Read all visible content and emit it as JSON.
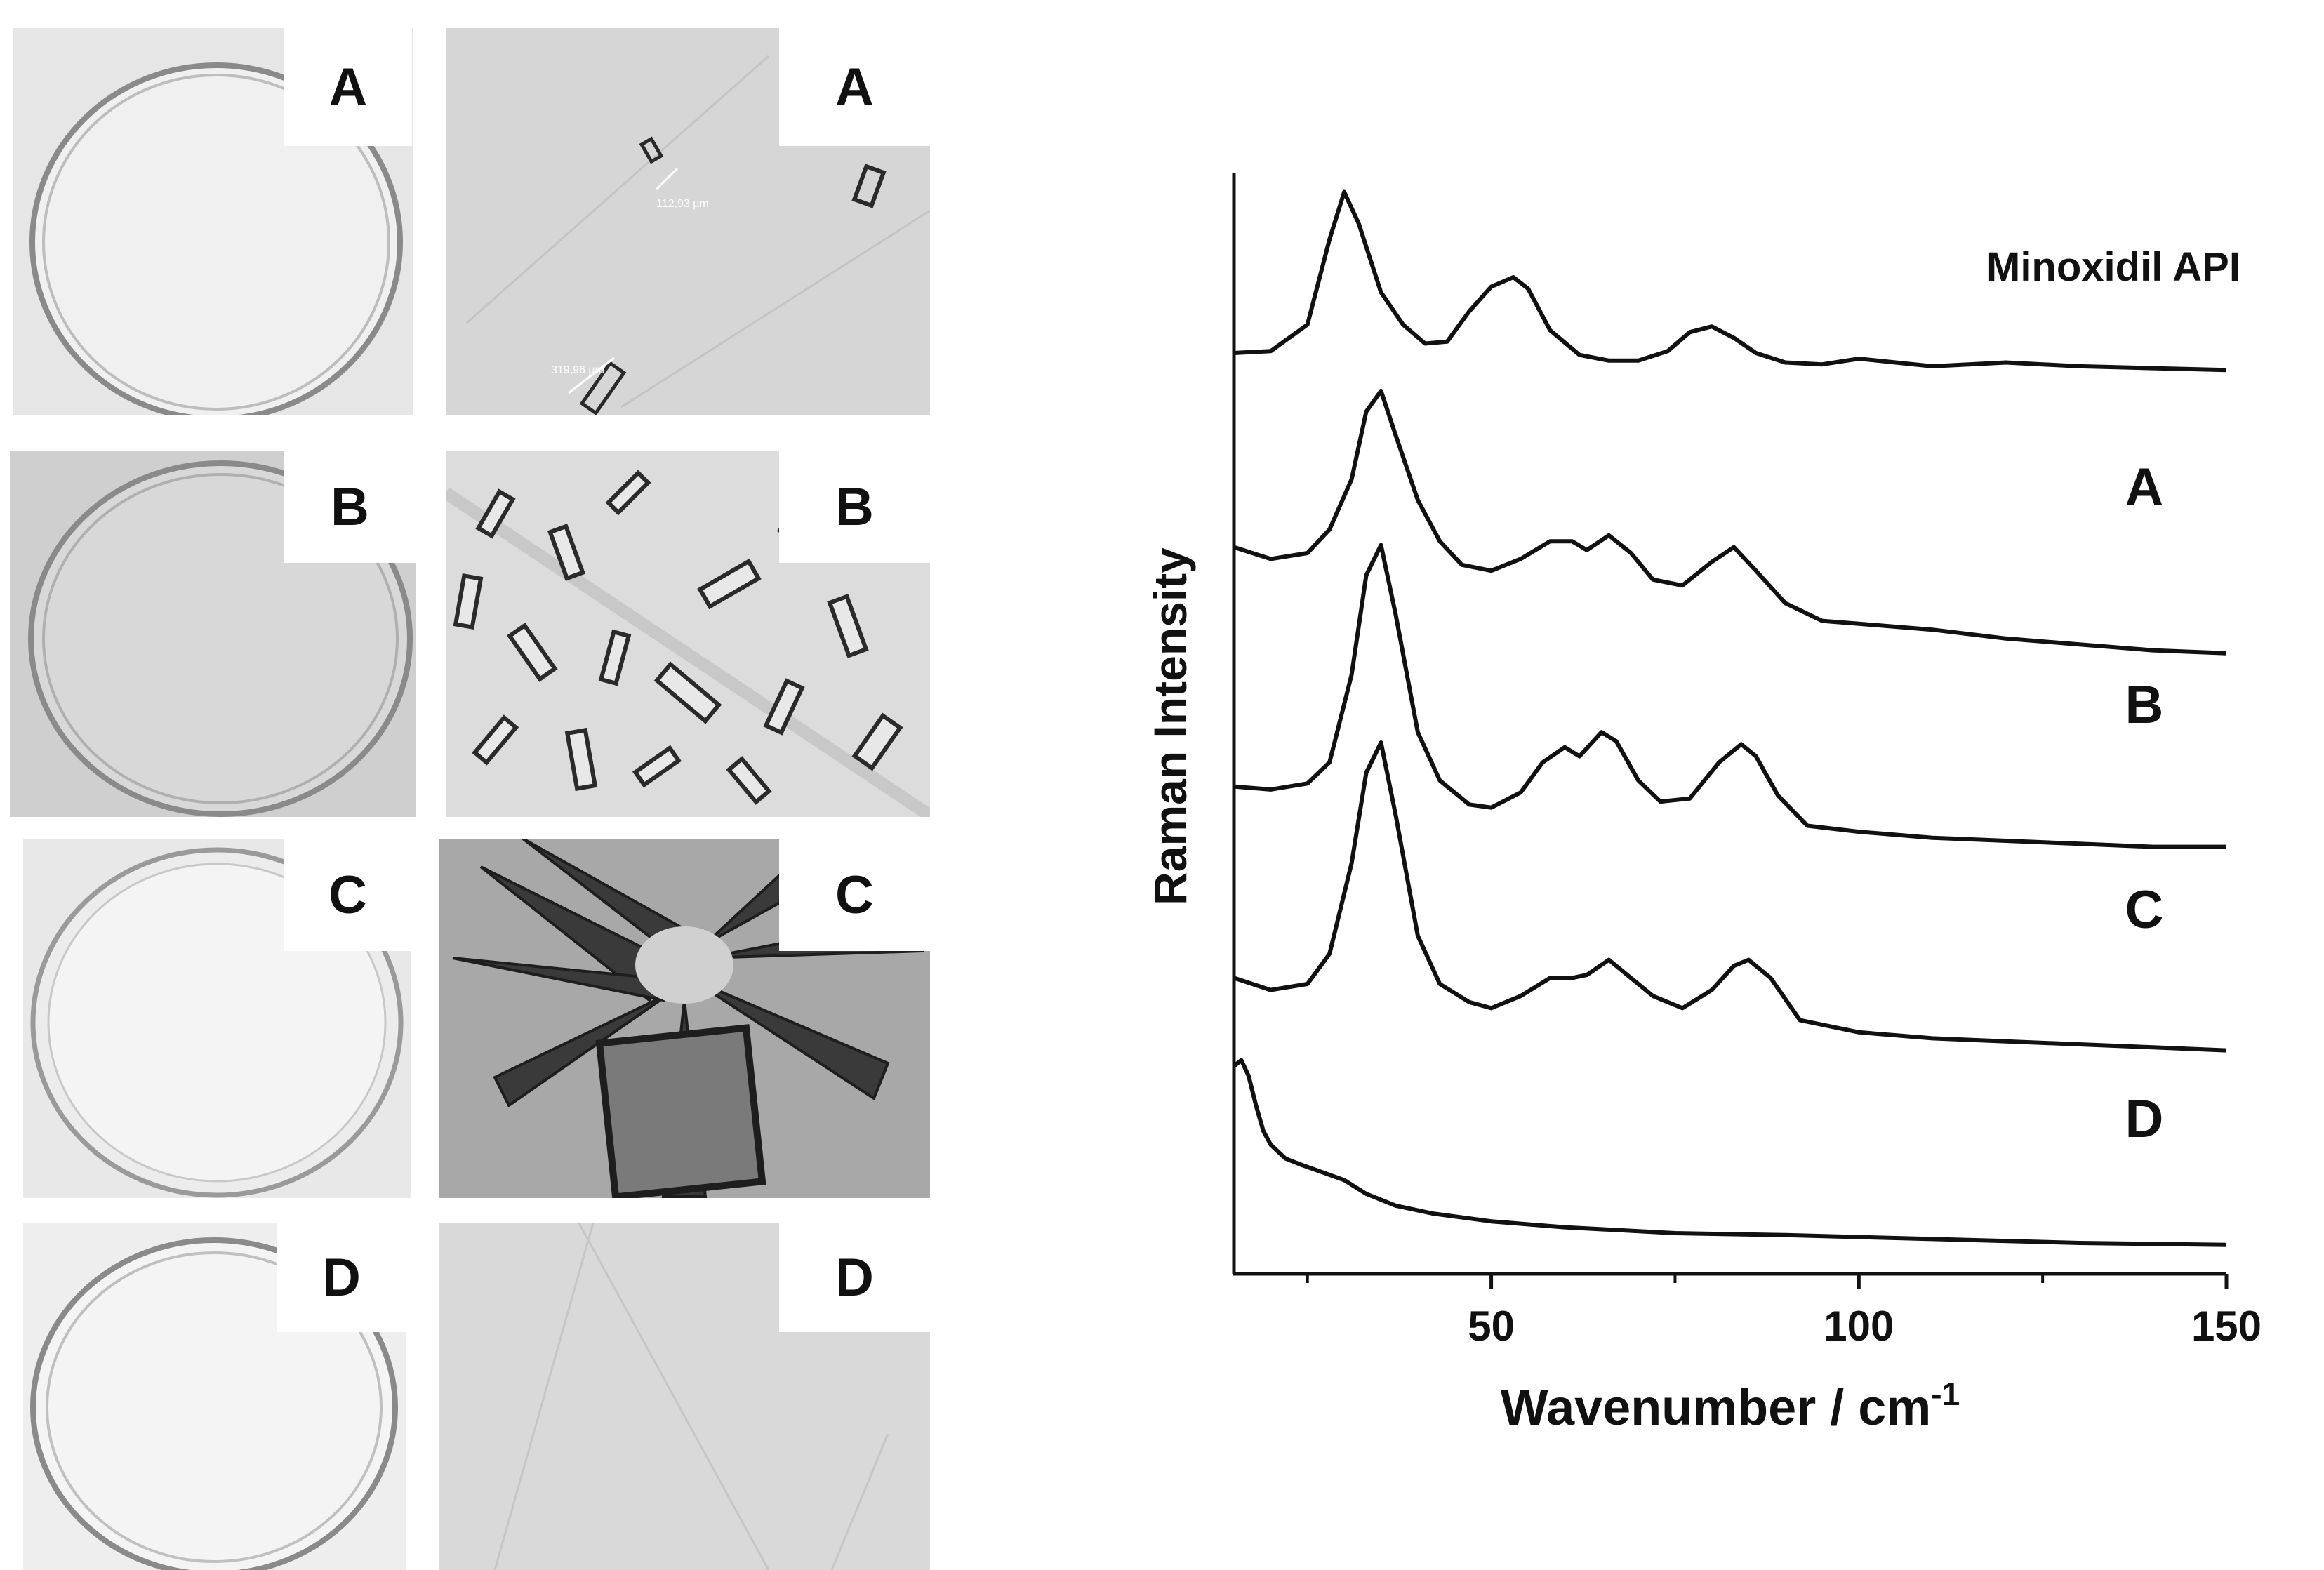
{
  "panels": [
    {
      "row_label": "A",
      "dish_label": "A",
      "micro_label": "A",
      "scale_bar_1": "112,93 µm",
      "scale_bar_2": "319,96 µm"
    },
    {
      "row_label": "B",
      "dish_label": "B",
      "micro_label": "B"
    },
    {
      "row_label": "C",
      "dish_label": "C",
      "micro_label": "C"
    },
    {
      "row_label": "D",
      "dish_label": "D",
      "micro_label": "D"
    }
  ],
  "colors": {
    "trace": "#111111",
    "axis": "#111111",
    "photo_background": "#d9d9d9",
    "dish_rim": "#8a8a8a",
    "crystal": "#2a2a2a"
  },
  "icons": [
    "petri-dish-photo",
    "micrograph-photo"
  ],
  "chart_data": {
    "type": "line",
    "title": "",
    "xlabel": "Wavenumber / cm-1",
    "xlabel_main": "Wavenumber / cm",
    "xlabel_sup": "-1",
    "ylabel": "Raman Intensity",
    "xlim": [
      15,
      150
    ],
    "x_ticks": [
      50,
      100,
      150
    ],
    "x_tick_labels": [
      "50",
      "100",
      "150"
    ],
    "minor_ticks": [
      25,
      75,
      125
    ],
    "y_ticks": [],
    "grid": false,
    "legend": "none",
    "series": [
      {
        "name": "Minoxidil API",
        "x": [
          15,
          20,
          25,
          28,
          30,
          32,
          35,
          38,
          41,
          44,
          47,
          50,
          53,
          55,
          58,
          62,
          66,
          70,
          74,
          77,
          80,
          83,
          86,
          90,
          95,
          100,
          105,
          110,
          115,
          120,
          125,
          130,
          140,
          150
        ],
        "y": [
          0.1,
          0.11,
          0.25,
          0.7,
          0.95,
          0.78,
          0.42,
          0.25,
          0.15,
          0.16,
          0.32,
          0.45,
          0.5,
          0.44,
          0.22,
          0.09,
          0.06,
          0.06,
          0.11,
          0.21,
          0.24,
          0.18,
          0.1,
          0.05,
          0.04,
          0.07,
          0.05,
          0.03,
          0.04,
          0.05,
          0.04,
          0.03,
          0.02,
          0.01
        ]
      },
      {
        "name": "A",
        "x": [
          15,
          20,
          25,
          28,
          31,
          33,
          35,
          37,
          40,
          43,
          46,
          50,
          54,
          58,
          61,
          63,
          66,
          69,
          72,
          76,
          80,
          83,
          86,
          90,
          95,
          100,
          110,
          120,
          130,
          140,
          150
        ],
        "y": [
          0.62,
          0.58,
          0.6,
          0.68,
          0.85,
          1.08,
          1.15,
          1.0,
          0.78,
          0.64,
          0.56,
          0.54,
          0.58,
          0.64,
          0.64,
          0.61,
          0.66,
          0.6,
          0.51,
          0.49,
          0.57,
          0.62,
          0.54,
          0.43,
          0.37,
          0.36,
          0.34,
          0.31,
          0.29,
          0.27,
          0.26
        ]
      },
      {
        "name": "B",
        "x": [
          15,
          20,
          25,
          28,
          31,
          33,
          35,
          37,
          40,
          43,
          47,
          50,
          54,
          57,
          60,
          62,
          65,
          67,
          70,
          73,
          77,
          81,
          84,
          86,
          89,
          93,
          100,
          110,
          120,
          130,
          140,
          150
        ],
        "y": [
          0.58,
          0.57,
          0.59,
          0.66,
          0.95,
          1.28,
          1.38,
          1.15,
          0.76,
          0.6,
          0.52,
          0.51,
          0.56,
          0.66,
          0.71,
          0.68,
          0.76,
          0.73,
          0.6,
          0.53,
          0.54,
          0.66,
          0.72,
          0.68,
          0.55,
          0.45,
          0.43,
          0.41,
          0.4,
          0.39,
          0.38,
          0.38
        ]
      },
      {
        "name": "C",
        "x": [
          15,
          20,
          25,
          28,
          31,
          33,
          35,
          37,
          40,
          43,
          47,
          50,
          54,
          58,
          61,
          63,
          66,
          69,
          72,
          76,
          80,
          83,
          85,
          88,
          92,
          100,
          110,
          120,
          130,
          140,
          150
        ],
        "y": [
          0.62,
          0.58,
          0.6,
          0.7,
          1.0,
          1.3,
          1.4,
          1.16,
          0.76,
          0.6,
          0.54,
          0.52,
          0.56,
          0.62,
          0.62,
          0.63,
          0.68,
          0.62,
          0.56,
          0.52,
          0.58,
          0.66,
          0.68,
          0.62,
          0.48,
          0.44,
          0.42,
          0.41,
          0.4,
          0.39,
          0.38
        ]
      },
      {
        "name": "D",
        "x": [
          15,
          16,
          17,
          18,
          19,
          20,
          22,
          24,
          27,
          30,
          33,
          37,
          42,
          50,
          60,
          75,
          90,
          110,
          130,
          150
        ],
        "y": [
          0.95,
          0.98,
          0.9,
          0.75,
          0.62,
          0.55,
          0.48,
          0.45,
          0.41,
          0.37,
          0.3,
          0.24,
          0.2,
          0.16,
          0.13,
          0.1,
          0.09,
          0.07,
          0.05,
          0.04
        ]
      }
    ]
  }
}
